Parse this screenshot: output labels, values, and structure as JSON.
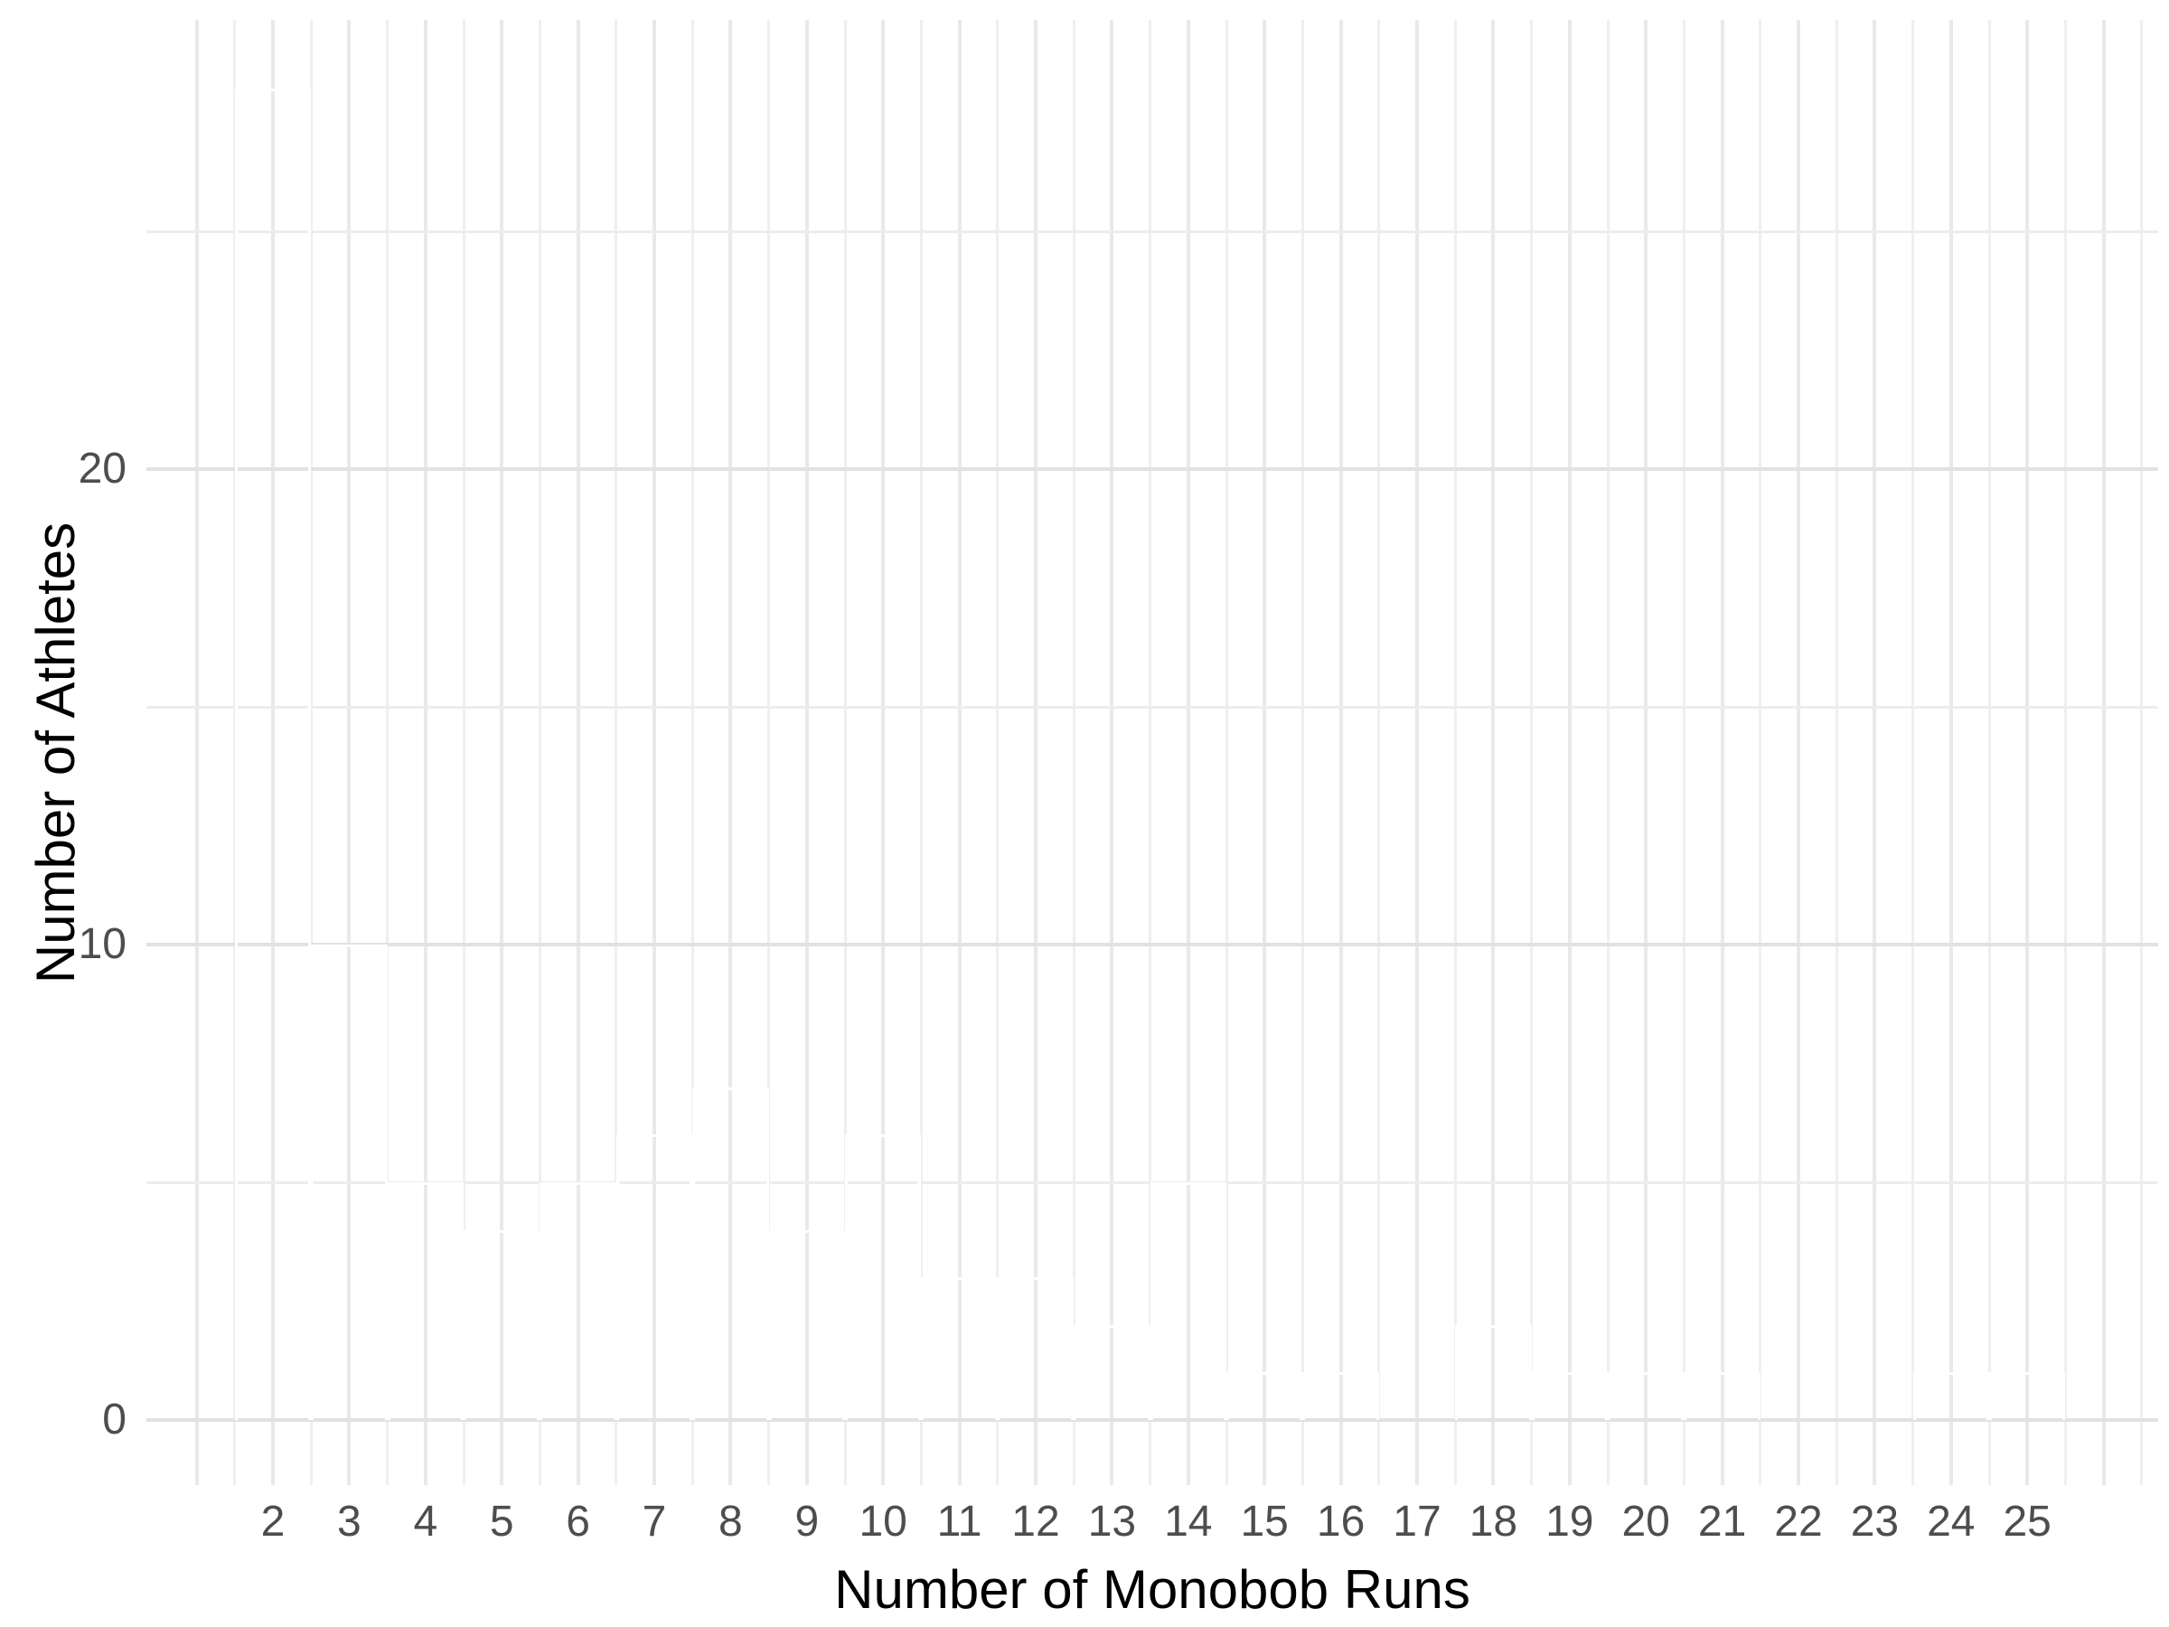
{
  "chart_data": {
    "type": "bar",
    "subtype": "histogram",
    "title": "",
    "xlabel": "Number of Monobob Runs",
    "ylabel": "Number of Athletes",
    "categories": [
      2,
      3,
      4,
      5,
      6,
      7,
      8,
      9,
      10,
      11,
      12,
      13,
      14,
      15,
      16,
      17,
      18,
      19,
      20,
      21,
      22,
      23,
      24,
      25
    ],
    "values": [
      28,
      10,
      5,
      4,
      5,
      6,
      7,
      4,
      6,
      3,
      3,
      2,
      5,
      1,
      1,
      0,
      2,
      1,
      1,
      1,
      0,
      0,
      1,
      1
    ],
    "x_tick_labels": [
      "2",
      "3",
      "4",
      "5",
      "6",
      "7",
      "8",
      "9",
      "10",
      "11",
      "12",
      "13",
      "14",
      "15",
      "16",
      "17",
      "18",
      "19",
      "20",
      "21",
      "22",
      "23",
      "24",
      "25"
    ],
    "y_major_ticks": [
      0,
      10,
      20
    ],
    "y_minor_ticks": [
      5,
      15,
      25
    ],
    "y_tick_labels": [
      "0",
      "10",
      "20"
    ],
    "xlim": [
      0.35,
      26.75
    ],
    "ylim": [
      -1.4,
      29.45
    ],
    "x_grid_step": 0.5,
    "x_grid_range": [
      1.0,
      26.5
    ],
    "legend": "none",
    "grid": "major+minor",
    "bar_width_units": 1.0,
    "colors": {
      "bar_fill": "#4682B4",
      "bar_fill_opacity": 0.7,
      "bar_border": "#ffffff",
      "grid_major_h": "#e2e2e2",
      "grid_minor_h": "#ededed",
      "grid_major_v": "#e9e9e9",
      "grid_minor_v": "#efefef",
      "tick_label": "#4d4d4d",
      "axis_title": "#000000",
      "background": "#ffffff"
    }
  }
}
